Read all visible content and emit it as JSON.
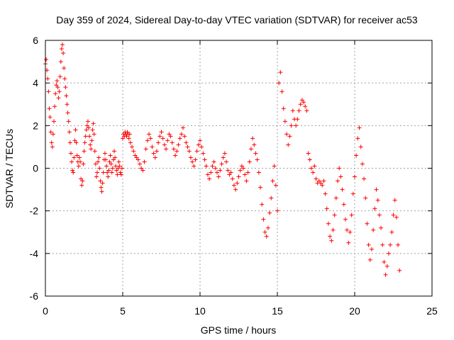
{
  "chart_data": {
    "type": "scatter",
    "title": "Day 359 of 2024, Sidereal Day-to-day VTEC variation (SDTVAR) for receiver ac53",
    "xlabel": "GPS time / hours",
    "ylabel": "SDTVAR / TECUs",
    "xlim": [
      0,
      25
    ],
    "ylim": [
      -6,
      6
    ],
    "xticks": [
      0,
      5,
      10,
      15,
      20,
      25
    ],
    "yticks": [
      -6,
      -4,
      -2,
      0,
      2,
      4,
      6
    ],
    "xtick_labels": [
      "0",
      "5",
      "10",
      "15",
      "20",
      "25"
    ],
    "ytick_labels": [
      "-6",
      "-4",
      "-2",
      "0",
      "2",
      "4",
      "6"
    ],
    "grid": true,
    "marker": "+",
    "color": "#ff0000",
    "series": [
      {
        "name": "SDTVAR",
        "points": [
          [
            0.0,
            4.9
          ],
          [
            0.05,
            5.1
          ],
          [
            0.1,
            4.6
          ],
          [
            0.15,
            4.2
          ],
          [
            0.2,
            3.6
          ],
          [
            0.25,
            2.8
          ],
          [
            0.3,
            2.4
          ],
          [
            0.35,
            1.7
          ],
          [
            0.4,
            1.2
          ],
          [
            0.45,
            1.0
          ],
          [
            0.5,
            1.6
          ],
          [
            0.55,
            2.2
          ],
          [
            0.6,
            2.9
          ],
          [
            0.65,
            3.5
          ],
          [
            0.7,
            3.9
          ],
          [
            0.75,
            4.1
          ],
          [
            0.8,
            3.8
          ],
          [
            0.85,
            3.3
          ],
          [
            0.9,
            3.6
          ],
          [
            0.95,
            4.3
          ],
          [
            1.0,
            5.0
          ],
          [
            1.05,
            5.6
          ],
          [
            1.1,
            5.8
          ],
          [
            1.15,
            5.4
          ],
          [
            1.2,
            4.7
          ],
          [
            1.25,
            4.2
          ],
          [
            1.3,
            3.8
          ],
          [
            1.35,
            3.4
          ],
          [
            1.4,
            3.0
          ],
          [
            1.45,
            2.6
          ],
          [
            1.5,
            2.2
          ],
          [
            1.55,
            1.7
          ],
          [
            1.6,
            1.2
          ],
          [
            1.65,
            0.7
          ],
          [
            1.7,
            0.3
          ],
          [
            1.75,
            -0.1
          ],
          [
            1.8,
            -0.2
          ],
          [
            1.85,
            0.5
          ],
          [
            1.9,
            1.3
          ],
          [
            1.95,
            1.8
          ],
          [
            2.0,
            1.2
          ],
          [
            2.05,
            0.6
          ],
          [
            2.1,
            0.3
          ],
          [
            2.15,
            0.1
          ],
          [
            2.2,
            0.5
          ],
          [
            2.25,
            0.3
          ],
          [
            2.3,
            -0.5
          ],
          [
            2.35,
            -0.8
          ],
          [
            2.4,
            -0.6
          ],
          [
            2.45,
            0.2
          ],
          [
            2.5,
            0.8
          ],
          [
            2.55,
            1.2
          ],
          [
            2.6,
            1.5
          ],
          [
            2.65,
            1.8
          ],
          [
            2.7,
            2.0
          ],
          [
            2.75,
            2.2
          ],
          [
            2.8,
            1.9
          ],
          [
            2.85,
            1.5
          ],
          [
            2.9,
            1.1
          ],
          [
            2.95,
            0.9
          ],
          [
            3.0,
            1.3
          ],
          [
            3.05,
            1.8
          ],
          [
            3.1,
            2.1
          ],
          [
            3.15,
            1.6
          ],
          [
            3.2,
            0.8
          ],
          [
            3.25,
            0.2
          ],
          [
            3.3,
            -0.4
          ],
          [
            3.35,
            -0.2
          ],
          [
            3.4,
            0.3
          ],
          [
            3.45,
            0.5
          ],
          [
            3.5,
            0.0
          ],
          [
            3.55,
            -0.6
          ],
          [
            3.6,
            -0.9
          ],
          [
            3.65,
            -1.1
          ],
          [
            3.7,
            -0.7
          ],
          [
            3.75,
            -0.2
          ],
          [
            3.8,
            0.4
          ],
          [
            3.85,
            0.7
          ],
          [
            3.9,
            0.4
          ],
          [
            3.95,
            0.1
          ],
          [
            4.0,
            -0.2
          ],
          [
            4.05,
            -0.4
          ],
          [
            4.1,
            -0.1
          ],
          [
            4.15,
            0.3
          ],
          [
            4.2,
            0.6
          ],
          [
            4.25,
            0.2
          ],
          [
            4.3,
            -0.2
          ],
          [
            4.35,
            0.0
          ],
          [
            4.4,
            0.4
          ],
          [
            4.45,
            0.8
          ],
          [
            4.5,
            0.5
          ],
          [
            4.55,
            0.1
          ],
          [
            4.6,
            -0.1
          ],
          [
            4.65,
            -0.3
          ],
          [
            4.7,
            0.0
          ],
          [
            4.75,
            0.3
          ],
          [
            4.8,
            0.1
          ],
          [
            4.85,
            -0.2
          ],
          [
            4.9,
            -0.3
          ],
          [
            4.95,
            0.0
          ],
          [
            5.0,
            1.4
          ],
          [
            5.05,
            1.6
          ],
          [
            5.1,
            1.5
          ],
          [
            5.15,
            1.7
          ],
          [
            5.2,
            1.6
          ],
          [
            5.25,
            1.5
          ],
          [
            5.3,
            1.7
          ],
          [
            5.35,
            1.6
          ],
          [
            5.4,
            1.4
          ],
          [
            5.45,
            1.6
          ],
          [
            5.5,
            1.2
          ],
          [
            5.6,
            1.0
          ],
          [
            5.7,
            0.8
          ],
          [
            5.8,
            0.6
          ],
          [
            5.9,
            0.5
          ],
          [
            6.0,
            0.4
          ],
          [
            6.1,
            0.2
          ],
          [
            6.2,
            0.0
          ],
          [
            6.3,
            -0.1
          ],
          [
            6.4,
            0.3
          ],
          [
            6.5,
            0.9
          ],
          [
            6.6,
            1.3
          ],
          [
            6.7,
            1.6
          ],
          [
            6.8,
            1.4
          ],
          [
            6.9,
            1.0
          ],
          [
            7.0,
            0.7
          ],
          [
            7.1,
            0.5
          ],
          [
            7.2,
            0.8
          ],
          [
            7.3,
            1.2
          ],
          [
            7.4,
            1.5
          ],
          [
            7.5,
            1.7
          ],
          [
            7.6,
            1.4
          ],
          [
            7.7,
            1.1
          ],
          [
            7.8,
            0.9
          ],
          [
            7.9,
            1.3
          ],
          [
            8.0,
            1.6
          ],
          [
            8.1,
            1.5
          ],
          [
            8.2,
            1.2
          ],
          [
            8.3,
            0.9
          ],
          [
            8.4,
            0.6
          ],
          [
            8.5,
            0.8
          ],
          [
            8.6,
            1.1
          ],
          [
            8.7,
            1.4
          ],
          [
            8.8,
            1.6
          ],
          [
            8.9,
            1.9
          ],
          [
            9.0,
            1.5
          ],
          [
            9.1,
            1.2
          ],
          [
            9.2,
            1.0
          ],
          [
            9.3,
            0.8
          ],
          [
            9.4,
            0.5
          ],
          [
            9.5,
            0.3
          ],
          [
            9.6,
            0.1
          ],
          [
            9.7,
            0.4
          ],
          [
            9.8,
            0.8
          ],
          [
            9.9,
            1.1
          ],
          [
            10.0,
            1.3
          ],
          [
            10.1,
            1.0
          ],
          [
            10.2,
            0.7
          ],
          [
            10.3,
            0.4
          ],
          [
            10.4,
            0.1
          ],
          [
            10.5,
            -0.3
          ],
          [
            10.6,
            -0.5
          ],
          [
            10.7,
            -0.2
          ],
          [
            10.8,
            0.1
          ],
          [
            10.9,
            0.3
          ],
          [
            11.0,
            0.0
          ],
          [
            11.1,
            -0.2
          ],
          [
            11.2,
            -0.4
          ],
          [
            11.3,
            -0.1
          ],
          [
            11.4,
            0.2
          ],
          [
            11.5,
            0.5
          ],
          [
            11.6,
            0.7
          ],
          [
            11.7,
            0.3
          ],
          [
            11.8,
            -0.1
          ],
          [
            11.9,
            -0.3
          ],
          [
            12.0,
            -0.2
          ],
          [
            12.1,
            -0.5
          ],
          [
            12.2,
            -0.8
          ],
          [
            12.3,
            -1.0
          ],
          [
            12.4,
            -0.7
          ],
          [
            12.5,
            -0.4
          ],
          [
            12.6,
            -0.1
          ],
          [
            12.7,
            0.1
          ],
          [
            12.8,
            0.0
          ],
          [
            12.9,
            -0.3
          ],
          [
            13.0,
            -0.6
          ],
          [
            13.1,
            -0.2
          ],
          [
            13.2,
            0.3
          ],
          [
            13.3,
            0.9
          ],
          [
            13.4,
            1.4
          ],
          [
            13.5,
            1.1
          ],
          [
            13.6,
            0.7
          ],
          [
            13.7,
            0.4
          ],
          [
            13.8,
            -0.2
          ],
          [
            13.9,
            -0.9
          ],
          [
            14.0,
            -1.7
          ],
          [
            14.1,
            -2.4
          ],
          [
            14.2,
            -3.0
          ],
          [
            14.3,
            -3.2
          ],
          [
            14.4,
            -2.8
          ],
          [
            14.5,
            -2.1
          ],
          [
            14.6,
            -1.4
          ],
          [
            14.7,
            -0.6
          ],
          [
            14.8,
            0.1
          ],
          [
            14.9,
            -0.8
          ],
          [
            15.0,
            -2.0
          ],
          [
            15.1,
            4.0
          ],
          [
            15.2,
            4.5
          ],
          [
            15.3,
            3.6
          ],
          [
            15.4,
            2.8
          ],
          [
            15.5,
            2.2
          ],
          [
            15.6,
            1.6
          ],
          [
            15.7,
            1.1
          ],
          [
            15.8,
            1.5
          ],
          [
            15.9,
            2.0
          ],
          [
            16.0,
            2.7
          ],
          [
            16.1,
            2.3
          ],
          [
            16.2,
            2.0
          ],
          [
            16.3,
            2.3
          ],
          [
            16.4,
            2.7
          ],
          [
            16.5,
            3.0
          ],
          [
            16.6,
            3.2
          ],
          [
            16.7,
            3.1
          ],
          [
            16.8,
            2.9
          ],
          [
            16.9,
            2.7
          ],
          [
            17.0,
            0.7
          ],
          [
            17.1,
            0.4
          ],
          [
            17.2,
            0.0
          ],
          [
            17.3,
            -0.2
          ],
          [
            17.4,
            0.1
          ],
          [
            17.5,
            -0.5
          ],
          [
            17.6,
            -0.7
          ],
          [
            17.7,
            -0.6
          ],
          [
            17.8,
            -0.7
          ],
          [
            17.9,
            -0.8
          ],
          [
            18.0,
            -0.6
          ],
          [
            18.1,
            -1.2
          ],
          [
            18.2,
            -1.9
          ],
          [
            18.3,
            -2.6
          ],
          [
            18.4,
            -3.2
          ],
          [
            18.5,
            -3.4
          ],
          [
            18.6,
            -2.9
          ],
          [
            18.7,
            -2.2
          ],
          [
            18.8,
            -1.4
          ],
          [
            18.9,
            -0.6
          ],
          [
            19.0,
            0.0
          ],
          [
            19.1,
            -0.4
          ],
          [
            19.2,
            -1.0
          ],
          [
            19.3,
            -1.7
          ],
          [
            19.4,
            -2.4
          ],
          [
            19.5,
            -2.9
          ],
          [
            19.6,
            -3.5
          ],
          [
            19.7,
            -3.0
          ],
          [
            19.8,
            -2.2
          ],
          [
            19.9,
            -1.2
          ],
          [
            20.0,
            -0.4
          ],
          [
            20.1,
            0.6
          ],
          [
            20.2,
            1.4
          ],
          [
            20.3,
            1.9
          ],
          [
            20.4,
            1.0
          ],
          [
            20.5,
            0.2
          ],
          [
            20.6,
            -0.5
          ],
          [
            20.7,
            -1.4
          ],
          [
            20.8,
            -2.6
          ],
          [
            20.9,
            -3.6
          ],
          [
            21.0,
            -4.3
          ],
          [
            21.1,
            -3.8
          ],
          [
            21.2,
            -2.9
          ],
          [
            21.3,
            -1.9
          ],
          [
            21.4,
            -1.0
          ],
          [
            21.5,
            -1.5
          ],
          [
            21.6,
            -2.2
          ],
          [
            21.7,
            -2.8
          ],
          [
            21.8,
            -3.6
          ],
          [
            21.9,
            -4.4
          ],
          [
            22.0,
            -5.0
          ],
          [
            22.1,
            -4.6
          ],
          [
            22.2,
            -4.0
          ],
          [
            22.3,
            -3.6
          ],
          [
            22.4,
            -3.0
          ],
          [
            22.5,
            -2.2
          ],
          [
            22.6,
            -1.5
          ],
          [
            22.7,
            -2.3
          ],
          [
            22.8,
            -3.6
          ],
          [
            22.9,
            -4.8
          ]
        ]
      }
    ]
  }
}
